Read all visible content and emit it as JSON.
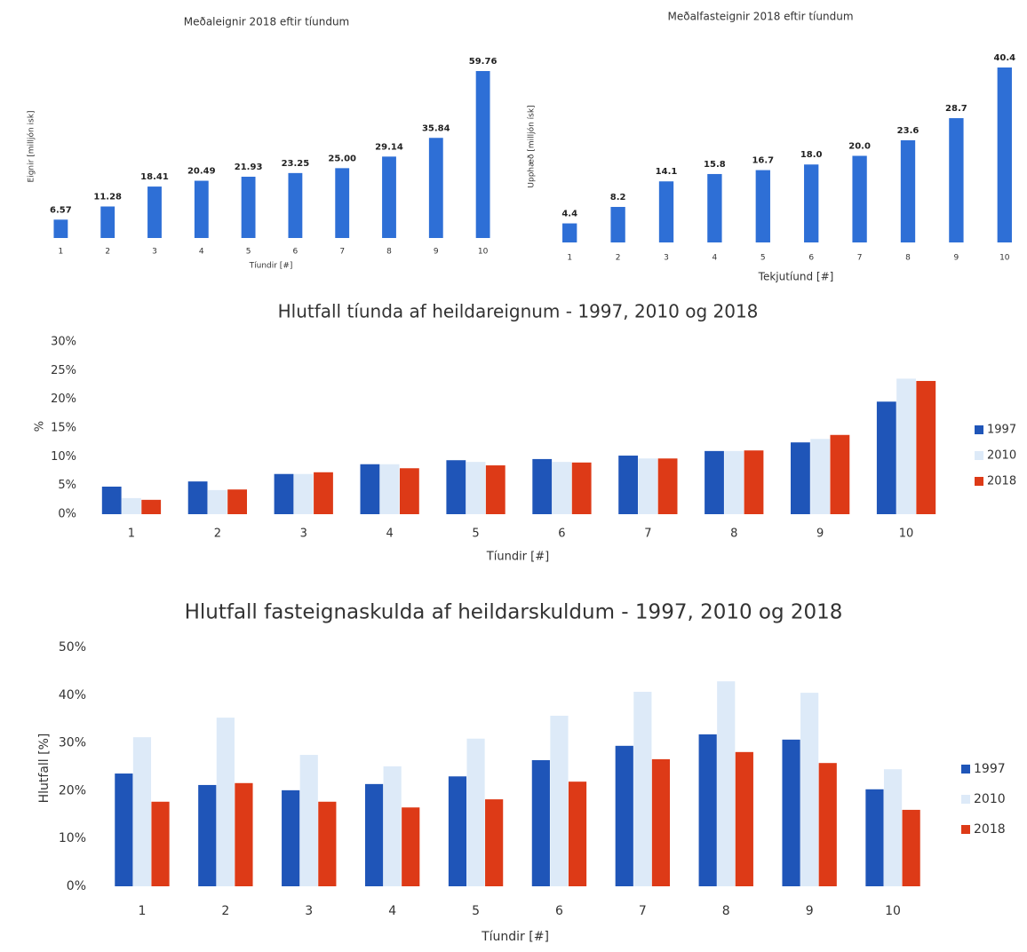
{
  "chart_data": [
    {
      "type": "bar",
      "title": "Meðaleignir 2018 eftir tíundum",
      "ylabel": "Eignir [milljón isk]",
      "xlabel": "Tíundir [#]",
      "categories": [
        "1",
        "2",
        "3",
        "4",
        "5",
        "6",
        "7",
        "8",
        "9",
        "10"
      ],
      "values": [
        6.57,
        11.28,
        18.41,
        20.49,
        21.93,
        23.25,
        25.0,
        29.14,
        35.84,
        59.76
      ],
      "value_labels": [
        "6.57",
        "11.28",
        "18.41",
        "20.49",
        "21.93",
        "23.25",
        "25.00",
        "29.14",
        "35.84",
        "59.76"
      ],
      "color": "#2e6fd6"
    },
    {
      "type": "bar",
      "title": "Meðalfasteignir 2018 eftir tíundum",
      "ylabel": "Upphæð [milljón ísk]",
      "xlabel": "Tekjutíund [#]",
      "categories": [
        "1",
        "2",
        "3",
        "4",
        "5",
        "6",
        "7",
        "8",
        "9",
        "10"
      ],
      "values": [
        4.4,
        8.2,
        14.1,
        15.8,
        16.7,
        18.0,
        20.0,
        23.6,
        28.7,
        40.4
      ],
      "value_labels": [
        "4.4",
        "8.2",
        "14.1",
        "15.8",
        "16.7",
        "18.0",
        "20.0",
        "23.6",
        "28.7",
        "40.4"
      ],
      "color": "#2e6fd6"
    },
    {
      "type": "grouped_bar",
      "title": "Hlutfall tíunda af heildareignum - 1997, 2010 og 2018",
      "ylabel": "%",
      "xlabel": "Tíundir [#]",
      "categories": [
        "1",
        "2",
        "3",
        "4",
        "5",
        "6",
        "7",
        "8",
        "9",
        "10"
      ],
      "ylim": [
        0,
        30
      ],
      "yticks": [
        {
          "value": 0,
          "label": "0%"
        },
        {
          "value": 5,
          "label": "5%"
        },
        {
          "value": 10,
          "label": "10%"
        },
        {
          "value": 15,
          "label": "15%"
        },
        {
          "value": 20,
          "label": "20%"
        },
        {
          "value": 25,
          "label": "25%"
        },
        {
          "value": 30,
          "label": "30%"
        }
      ],
      "legend": "right",
      "series": [
        {
          "name": "1997",
          "color": "#1f55b8",
          "values": [
            4.8,
            5.7,
            7.0,
            8.7,
            9.4,
            9.6,
            10.2,
            11.0,
            12.5,
            19.6
          ]
        },
        {
          "name": "2010",
          "color": "#ddeaf8",
          "values": [
            2.8,
            4.2,
            7.0,
            8.7,
            9.1,
            9.1,
            9.7,
            11.0,
            13.1,
            23.6
          ]
        },
        {
          "name": "2018",
          "color": "#dd3a17",
          "values": [
            2.5,
            4.3,
            7.3,
            8.0,
            8.5,
            9.0,
            9.7,
            11.1,
            13.8,
            23.2
          ]
        }
      ]
    },
    {
      "type": "grouped_bar",
      "title": "Hlutfall fasteignaskulda af heildarskuldum - 1997, 2010 og 2018",
      "ylabel": "Hlutfall [%]",
      "xlabel": "Tíundir [#]",
      "categories": [
        "1",
        "2",
        "3",
        "4",
        "5",
        "6",
        "7",
        "8",
        "9",
        "10"
      ],
      "ylim": [
        0,
        50
      ],
      "yticks": [
        {
          "value": 0,
          "label": "0%"
        },
        {
          "value": 10,
          "label": "10%"
        },
        {
          "value": 20,
          "label": "20%"
        },
        {
          "value": 30,
          "label": "30%"
        },
        {
          "value": 40,
          "label": "40%"
        },
        {
          "value": 50,
          "label": "50%"
        }
      ],
      "legend": "right",
      "series": [
        {
          "name": "1997",
          "color": "#1f55b8",
          "values": [
            23.6,
            21.2,
            20.1,
            21.4,
            23.0,
            26.4,
            29.4,
            31.8,
            30.7,
            20.3
          ]
        },
        {
          "name": "2010",
          "color": "#ddeaf8",
          "values": [
            31.2,
            35.3,
            27.5,
            25.1,
            30.9,
            35.7,
            40.7,
            42.9,
            40.5,
            24.5
          ]
        },
        {
          "name": "2018",
          "color": "#dd3a17",
          "values": [
            17.7,
            21.6,
            17.7,
            16.5,
            18.2,
            21.9,
            26.6,
            28.1,
            25.8,
            16.0
          ]
        }
      ]
    }
  ]
}
